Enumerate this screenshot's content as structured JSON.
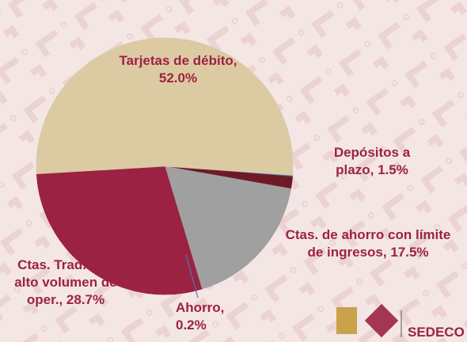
{
  "chart_data": {
    "type": "pie",
    "labels": [
      "Ahorro, 0.2%",
      "Depósitos a plazo, 1.5%",
      "Ctas. de ahorro  con límite de  ingresos, 17.5%",
      "Ctas. Trad. con alto volumen  de oper., 28.7%",
      "Tarjetas de débito, 52.0%"
    ],
    "values": [
      0.2,
      1.5,
      17.5,
      28.7,
      52.0
    ],
    "colors": [
      "#4a76b8",
      "#6e1a26",
      "#a0a0a0",
      "#9b2243",
      "#dccaa3"
    ],
    "logo_text": "SEDECO"
  }
}
